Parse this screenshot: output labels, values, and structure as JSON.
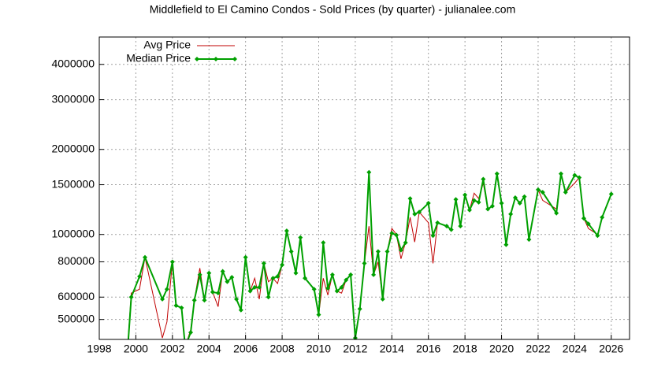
{
  "chart_data": {
    "type": "line",
    "title": "Middlefield to El Camino Condos - Sold Prices (by quarter) - julianalee.com",
    "x": [
      1999.5,
      1999.75,
      2000.2,
      2000.5,
      2001.45,
      2001.7,
      2002.0,
      2002.2,
      2002.5,
      2002.7,
      2003.0,
      2003.2,
      2003.5,
      2003.75,
      2004.0,
      2004.2,
      2004.5,
      2004.75,
      2005.0,
      2005.25,
      2005.5,
      2005.75,
      2006.0,
      2006.25,
      2006.5,
      2006.75,
      2007.0,
      2007.25,
      2007.5,
      2007.75,
      2008.0,
      2008.25,
      2008.5,
      2008.75,
      2009.0,
      2009.25,
      2009.75,
      2010.0,
      2010.25,
      2010.5,
      2010.75,
      2011.0,
      2011.25,
      2011.5,
      2011.75,
      2012.0,
      2012.25,
      2012.5,
      2012.75,
      2013.0,
      2013.25,
      2013.5,
      2013.75,
      2014.0,
      2014.25,
      2014.5,
      2014.75,
      2015.0,
      2015.25,
      2015.5,
      2016.0,
      2016.25,
      2016.5,
      2017.0,
      2017.25,
      2017.5,
      2017.75,
      2018.0,
      2018.25,
      2018.5,
      2018.75,
      2019.0,
      2019.25,
      2019.5,
      2019.75,
      2020.0,
      2020.25,
      2020.5,
      2020.75,
      2021.0,
      2021.25,
      2021.5,
      2022.0,
      2022.25,
      2023.0,
      2023.25,
      2023.5,
      2024.0,
      2024.25,
      2024.5,
      2024.75,
      2025.25,
      2025.5,
      2026.0
    ],
    "series": [
      {
        "name": "Avg Price",
        "color": "#c00000",
        "marker": false,
        "values": [
          360000,
          620000,
          640000,
          830000,
          430000,
          490000,
          800000,
          560000,
          550000,
          400000,
          460000,
          585000,
          760000,
          585000,
          730000,
          625000,
          555000,
          740000,
          680000,
          705000,
          590000,
          540000,
          830000,
          630000,
          700000,
          590000,
          790000,
          680000,
          700000,
          670000,
          780000,
          1030000,
          870000,
          730000,
          975000,
          700000,
          640000,
          520000,
          700000,
          610000,
          720000,
          630000,
          620000,
          690000,
          720000,
          430000,
          545000,
          790000,
          1070000,
          720000,
          800000,
          590000,
          870000,
          1050000,
          1000000,
          820000,
          940000,
          1150000,
          940000,
          1200000,
          1100000,
          790000,
          1100000,
          1070000,
          1040000,
          1330000,
          1070000,
          1380000,
          1220000,
          1400000,
          1340000,
          1520000,
          1230000,
          1260000,
          1640000,
          1290000,
          920000,
          1180000,
          1350000,
          1290000,
          1360000,
          960000,
          1440000,
          1320000,
          1230000,
          1640000,
          1410000,
          1520000,
          1590000,
          1140000,
          1050000,
          1000000,
          1150000,
          1390000
        ]
      },
      {
        "name": "Median Price",
        "color": "#00a000",
        "marker": true,
        "values": [
          350000,
          600000,
          710000,
          830000,
          590000,
          640000,
          800000,
          560000,
          550000,
          400000,
          450000,
          585000,
          720000,
          585000,
          730000,
          625000,
          620000,
          740000,
          680000,
          705000,
          590000,
          540000,
          830000,
          630000,
          650000,
          650000,
          790000,
          600000,
          700000,
          710000,
          780000,
          1030000,
          870000,
          730000,
          975000,
          700000,
          640000,
          520000,
          935000,
          645000,
          720000,
          630000,
          650000,
          690000,
          720000,
          430000,
          545000,
          790000,
          1660000,
          720000,
          870000,
          590000,
          870000,
          1010000,
          995000,
          880000,
          935000,
          1340000,
          1180000,
          1200000,
          1290000,
          990000,
          1100000,
          1070000,
          1040000,
          1330000,
          1070000,
          1380000,
          1220000,
          1320000,
          1300000,
          1570000,
          1230000,
          1260000,
          1640000,
          1290000,
          920000,
          1180000,
          1350000,
          1290000,
          1360000,
          960000,
          1440000,
          1410000,
          1190000,
          1640000,
          1410000,
          1620000,
          1590000,
          1140000,
          1090000,
          990000,
          1150000,
          1390000
        ]
      }
    ],
    "xlim": [
      1998,
      2027
    ],
    "xticks": [
      1998,
      2000,
      2002,
      2004,
      2006,
      2008,
      2010,
      2012,
      2014,
      2016,
      2018,
      2020,
      2022,
      2024,
      2026
    ],
    "ylim": [
      425000,
      5000000
    ],
    "yticks": [
      500000,
      600000,
      800000,
      1000000,
      1500000,
      2000000,
      3000000,
      4000000
    ],
    "log_y": true,
    "grid": true,
    "legend": "top-left"
  }
}
